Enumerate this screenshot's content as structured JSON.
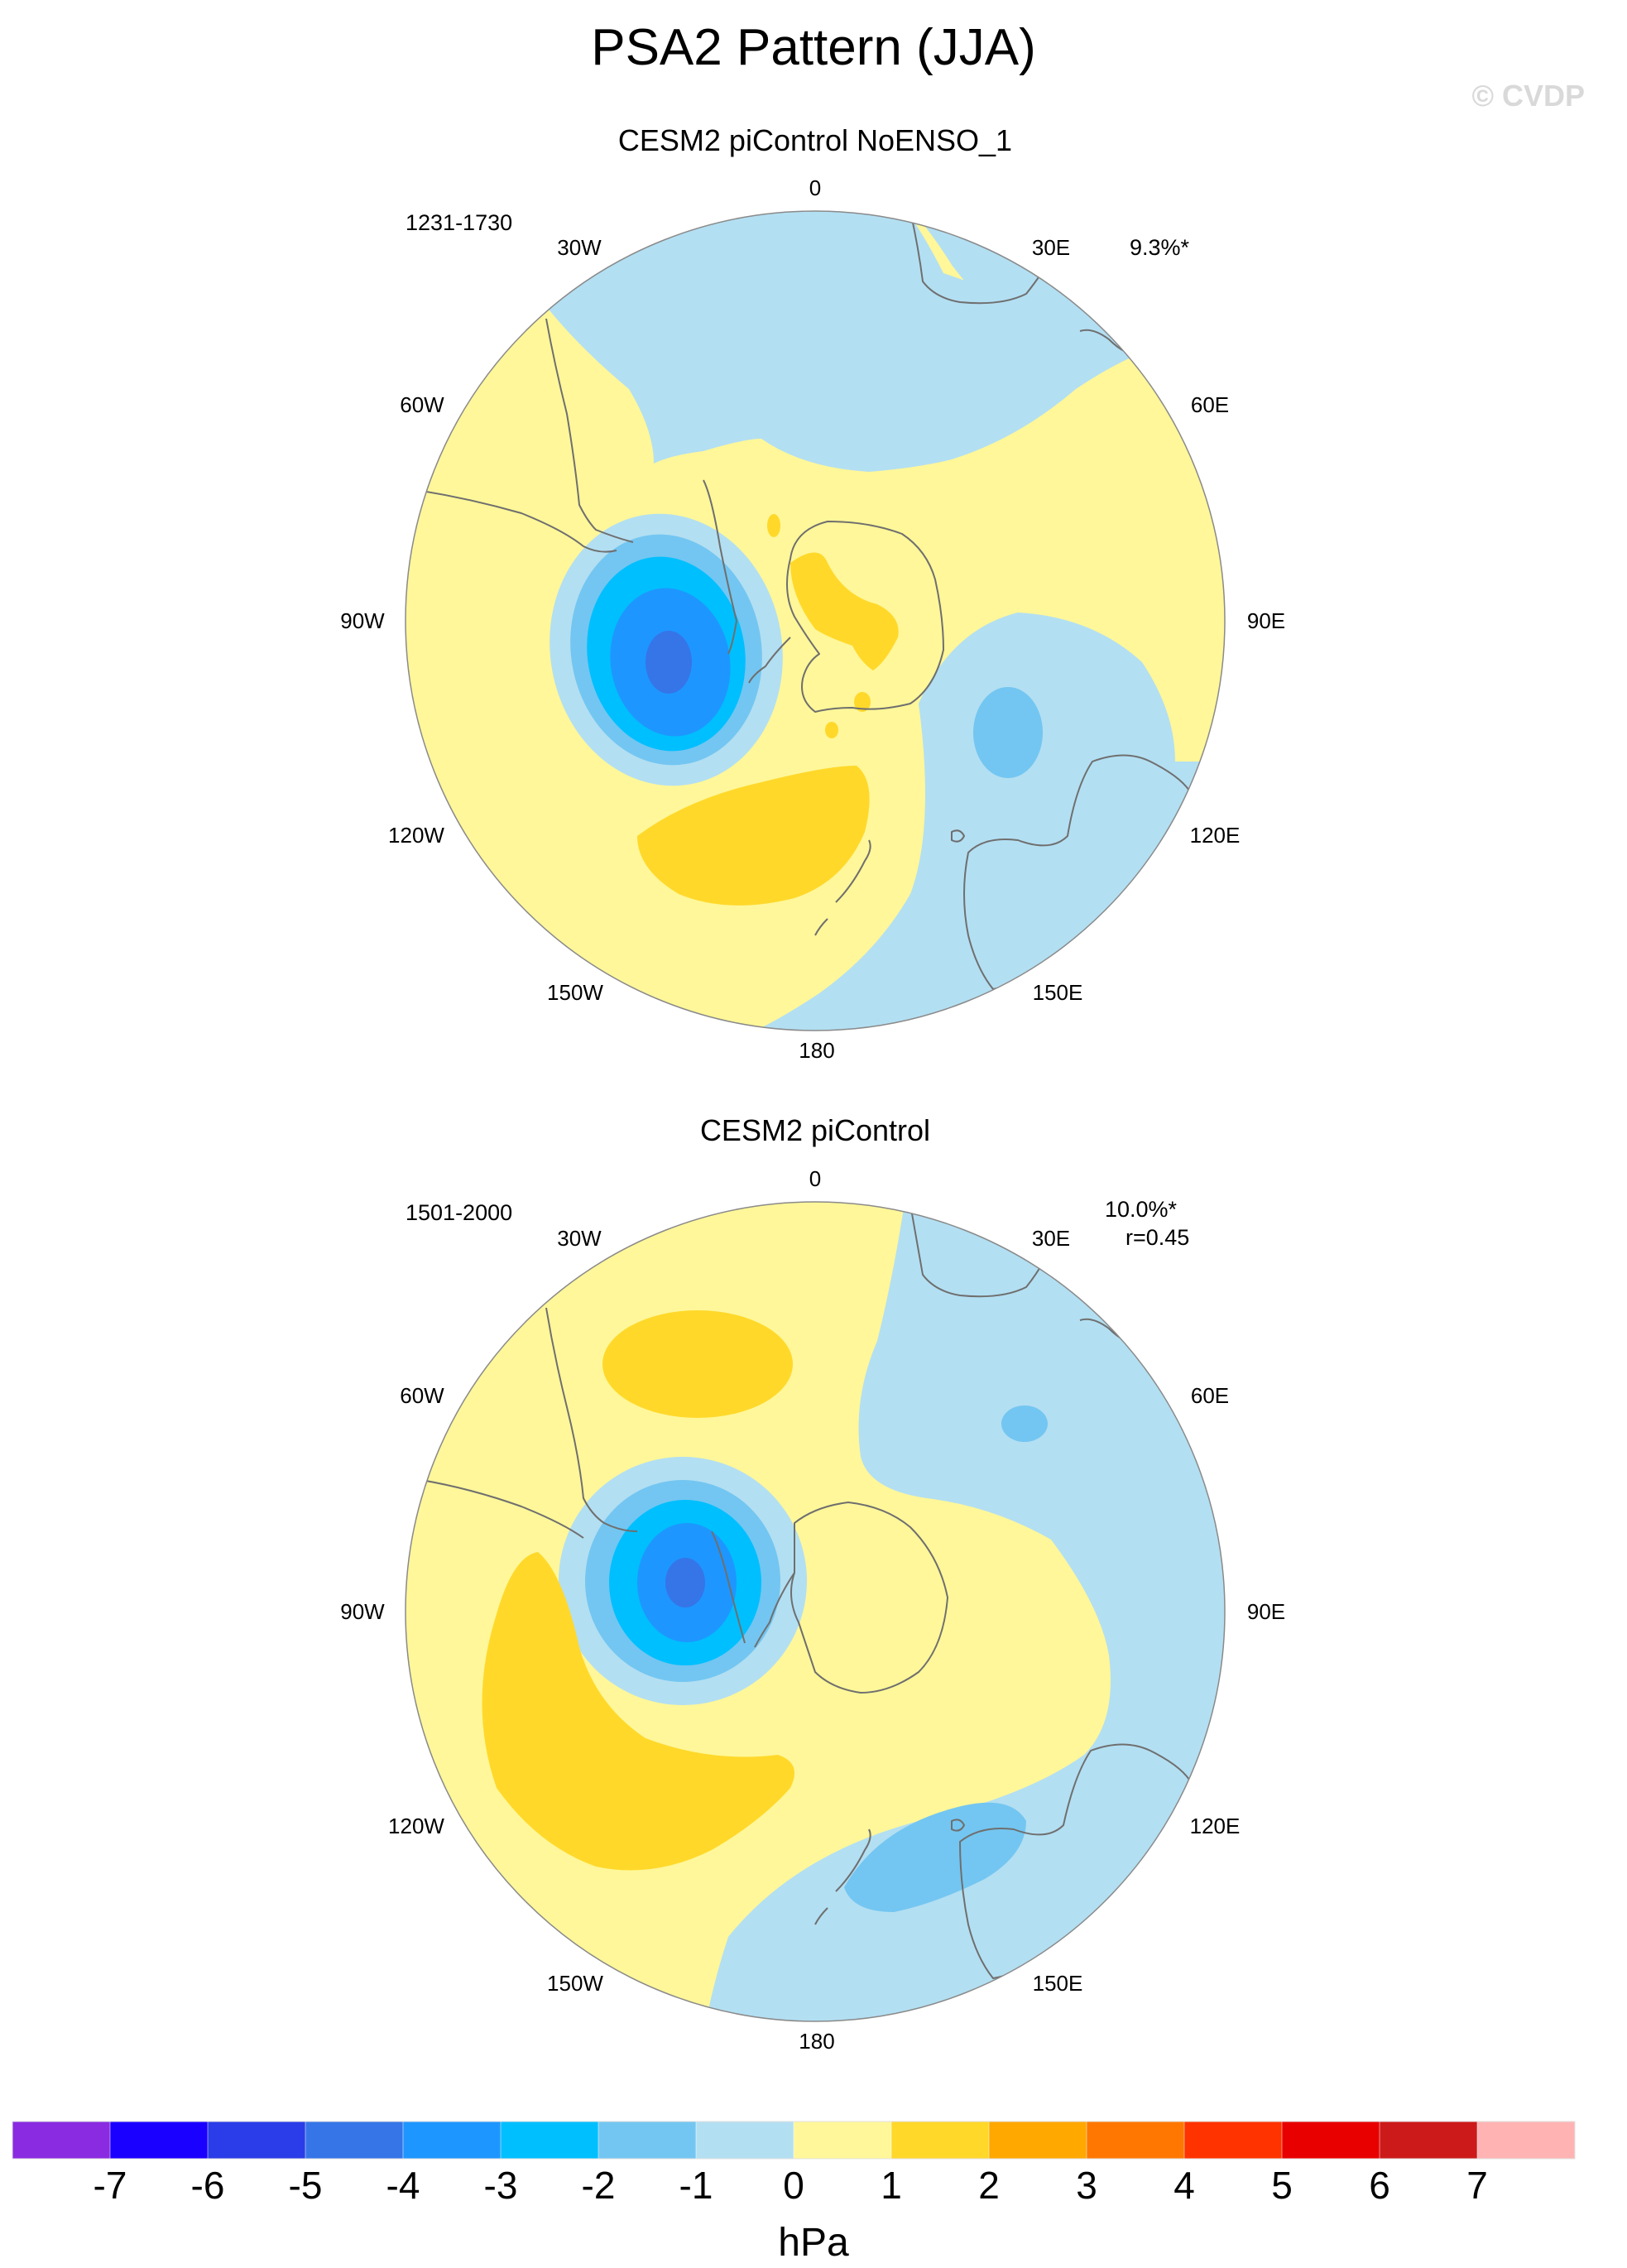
{
  "title": "PSA2 Pattern (JJA)",
  "watermark": "© CVDP",
  "panels": [
    {
      "subtitle": "CESM2 piControl NoENSO_1",
      "years": "1231-1730",
      "stats": [
        "9.3%*"
      ]
    },
    {
      "subtitle": "CESM2 piControl",
      "years": "1501-2000",
      "stats": [
        "10.0%*",
        "r=0.45"
      ]
    }
  ],
  "longitude_labels": [
    "0",
    "30E",
    "60E",
    "90E",
    "120E",
    "150E",
    "180",
    "150W",
    "120W",
    "90W",
    "60W",
    "30W"
  ],
  "colorbar": {
    "unit": "hPa",
    "tick_labels": [
      "-7",
      "-6",
      "-5",
      "-4",
      "-3",
      "-2",
      "-1",
      "0",
      "1",
      "2",
      "3",
      "4",
      "5",
      "6",
      "7"
    ],
    "colors": [
      "#8a2be2",
      "#1a00ff",
      "#2a3de8",
      "#3575e8",
      "#1e96ff",
      "#00bfff",
      "#73c6f1",
      "#b3dff2",
      "#fff799",
      "#ffd82a",
      "#ffa800",
      "#ff7700",
      "#ff3300",
      "#e80000",
      "#cc1a1a",
      "#ffb3b3"
    ]
  }
}
